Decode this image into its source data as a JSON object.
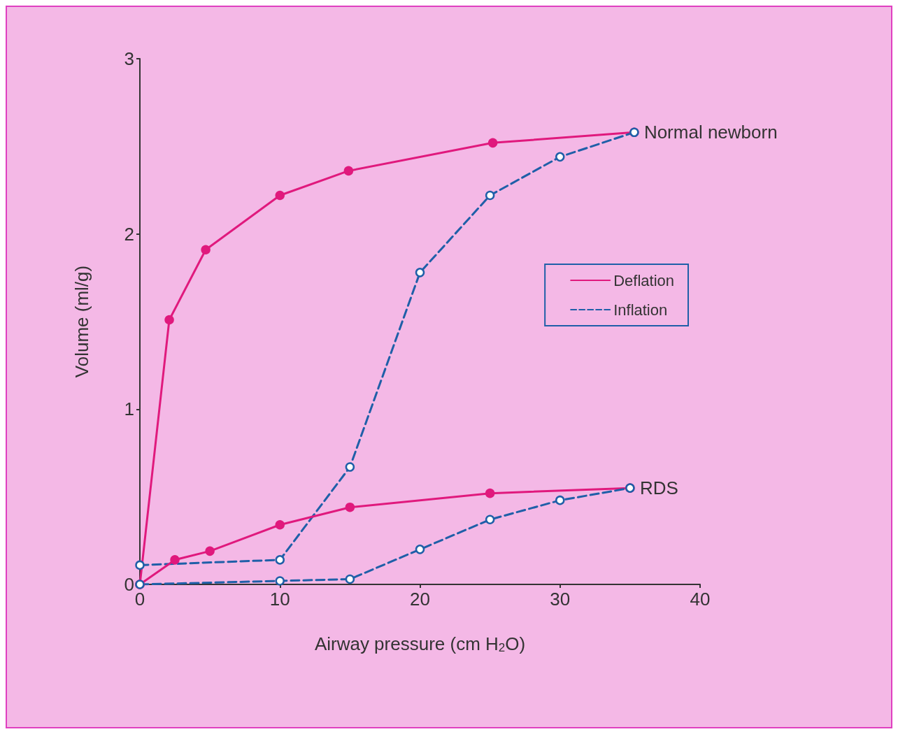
{
  "chart_data": {
    "type": "line",
    "xlabel": "Airway pressure (cm H$_{2}$O)",
    "ylabel": "Volume (ml/g)",
    "xlim": [
      0,
      40
    ],
    "xticks": [
      0,
      10,
      20,
      30,
      40
    ],
    "ylim": [
      0,
      3
    ],
    "yticks": [
      0,
      1,
      2,
      3
    ],
    "grid": false,
    "legend": "center right",
    "marker": "circle",
    "series": [
      {
        "name": "Deflation",
        "color": "#e0197d",
        "line_style": "solid",
        "x": [
          0,
          2.1,
          4.7,
          10,
          14.9,
          25.2,
          35.3
        ],
        "values": [
          0,
          1.51,
          1.91,
          2.22,
          2.36,
          2.52,
          2.58
        ]
      },
      {
        "name": "Inflation",
        "color": "#1f5fa8",
        "line_style": "dashed",
        "x": [
          0,
          10,
          15,
          20,
          25,
          30,
          35.3
        ],
        "values": [
          0.11,
          0.14,
          0.67,
          1.78,
          2.22,
          2.44,
          2.58
        ]
      },
      {
        "color": "#e0197d",
        "line_style": "solid",
        "x": [
          0,
          2.5,
          5,
          10,
          15,
          25,
          35
        ],
        "values": [
          0,
          0.14,
          0.19,
          0.34,
          0.44,
          0.52,
          0.55
        ]
      },
      {
        "color": "#1f5fa8",
        "line_style": "dashed",
        "x": [
          0,
          10,
          15,
          20,
          25,
          30,
          35
        ],
        "values": [
          0,
          0.02,
          0.03,
          0.2,
          0.37,
          0.48,
          0.55
        ]
      }
    ],
    "annotations": [
      {
        "text": "Normal newborn",
        "x": 35.3,
        "y": 2.58
      },
      {
        "text": "RDS",
        "x": 35,
        "y": 0.55
      }
    ]
  }
}
